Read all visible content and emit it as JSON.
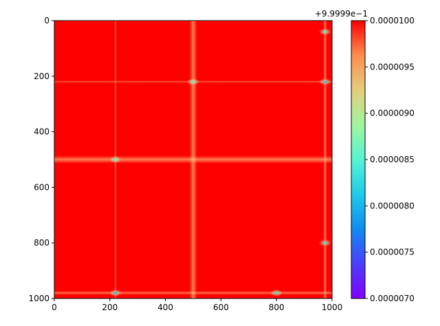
{
  "chart_data": {
    "type": "heatmap",
    "title": "",
    "xlabel": "",
    "ylabel": "",
    "xlim": [
      0,
      1000
    ],
    "ylim": [
      1000,
      0
    ],
    "x_ticks": [
      "0",
      "200",
      "400",
      "600",
      "800",
      "1000"
    ],
    "y_ticks": [
      "0",
      "200",
      "400",
      "600",
      "800",
      "1000"
    ],
    "colormap": "rainbow",
    "grid": false,
    "colorbar": {
      "offset_label": "+9.9999e−1",
      "range": [
        7e-06,
        1e-05
      ],
      "ticks": [
        "0.0000070",
        "0.0000075",
        "0.0000080",
        "0.0000085",
        "0.0000090",
        "0.0000095",
        "0.0000100"
      ]
    },
    "bands": [
      {
        "axis": "x",
        "position": 220,
        "width": 10,
        "depth": 0.35
      },
      {
        "axis": "x",
        "position": 500,
        "width": 28,
        "depth": 0.55
      },
      {
        "axis": "x",
        "position": 975,
        "width": 14,
        "depth": 0.5
      },
      {
        "axis": "y",
        "position": 220,
        "width": 10,
        "depth": 0.35
      },
      {
        "axis": "y",
        "position": 500,
        "width": 28,
        "depth": 0.55
      },
      {
        "axis": "y",
        "position": 980,
        "width": 14,
        "depth": 0.5
      }
    ],
    "hot_spots": [
      {
        "x": 975,
        "y": 220,
        "value": 7.9e-06
      },
      {
        "x": 220,
        "y": 980,
        "value": 7.9e-06
      },
      {
        "x": 975,
        "y": 800,
        "value": 8.3e-06
      },
      {
        "x": 500,
        "y": 220,
        "value": 8.6e-06
      },
      {
        "x": 220,
        "y": 500,
        "value": 8.8e-06
      },
      {
        "x": 800,
        "y": 980,
        "value": 8.3e-06
      },
      {
        "x": 975,
        "y": 40,
        "value": 8.5e-06
      }
    ]
  }
}
